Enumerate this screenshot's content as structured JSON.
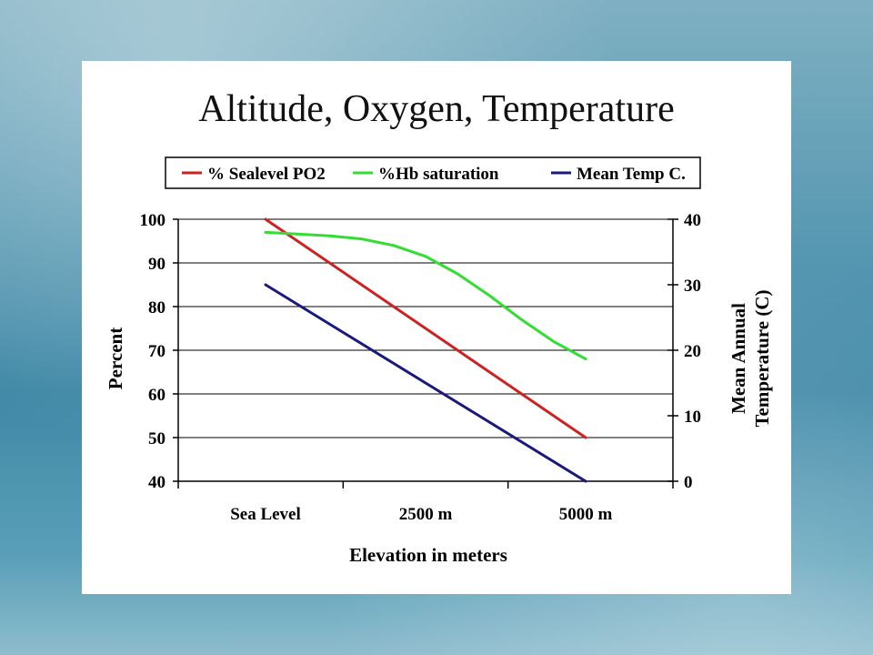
{
  "chart_data": {
    "type": "line",
    "title": "Altitude, Oxygen, Temperature",
    "xlabel": "Elevation in meters",
    "ylabel": "Percent",
    "y2label": [
      "Mean Annual",
      "Temperature (C)"
    ],
    "categories": [
      "Sea Level",
      "2500 m",
      "5000 m"
    ],
    "x": [
      0,
      2500,
      5000
    ],
    "ylim": [
      40,
      100
    ],
    "y2lim": [
      0,
      40
    ],
    "yticks": [
      40,
      50,
      60,
      70,
      80,
      90,
      100
    ],
    "y2ticks": [
      0,
      10,
      20,
      30,
      40
    ],
    "grid": true,
    "legend": "top",
    "series": [
      {
        "name": "% Sealevel PO2",
        "axis": "left",
        "color": "#cc2222",
        "points": [
          [
            0,
            100
          ],
          [
            5000,
            50
          ]
        ]
      },
      {
        "name": "%Hb saturation",
        "axis": "left",
        "color": "#33dd33",
        "points": [
          [
            0,
            97
          ],
          [
            500,
            96.6
          ],
          [
            1000,
            96.2
          ],
          [
            1500,
            95.5
          ],
          [
            2000,
            94
          ],
          [
            2500,
            91.5
          ],
          [
            3000,
            87.5
          ],
          [
            3500,
            82.5
          ],
          [
            4000,
            77
          ],
          [
            4500,
            72
          ],
          [
            5000,
            68
          ]
        ]
      },
      {
        "name": "Mean Temp C.",
        "axis": "right",
        "color": "#1a1a7a",
        "points": [
          [
            0,
            30
          ],
          [
            5000,
            0
          ]
        ]
      }
    ]
  }
}
